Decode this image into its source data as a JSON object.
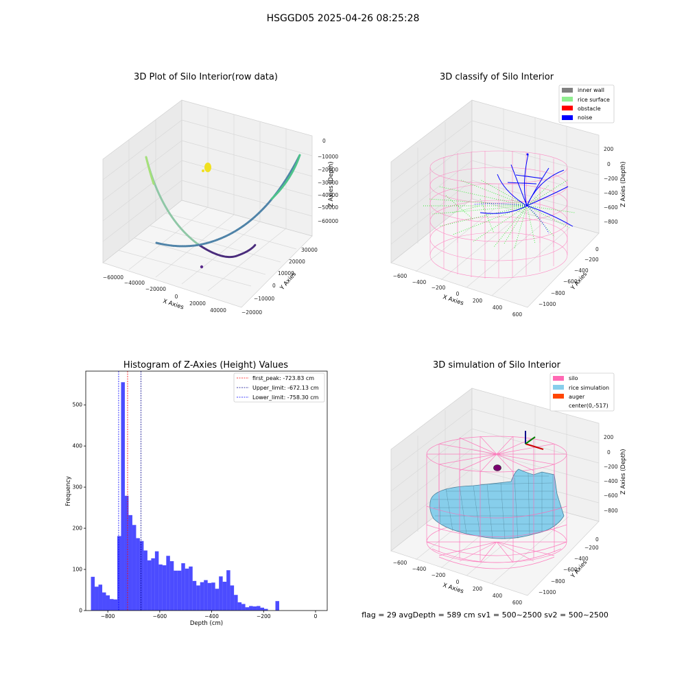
{
  "figure": {
    "suptitle": "HSGGD05 2025-04-26 08:25:28",
    "footer": "flag = 29  avgDepth = 589 cm  sv1 = 500~2500  sv2 = 500~2500"
  },
  "panels": {
    "raw": {
      "title": "3D Plot of Silo Interior(row data)",
      "x_label": "X Axies",
      "y_label": "Y Axies",
      "z_label": "Z Axies (Depth)",
      "x_ticks": [
        "−60000",
        "−40000",
        "−20000",
        "0",
        "20000",
        "40000"
      ],
      "y_ticks": [
        "−20000",
        "−10000",
        "0",
        "10000",
        "20000",
        "30000"
      ],
      "z_ticks": [
        "0",
        "−10000",
        "−20000",
        "−30000",
        "−40000",
        "−50000",
        "−60000"
      ]
    },
    "classify": {
      "title": "3D classify of Silo Interior",
      "x_label": "X Axies",
      "y_label": "Y Axies",
      "z_label": "Z Axies (Depth)",
      "x_ticks": [
        "−600",
        "−400",
        "−200",
        "0",
        "200",
        "400",
        "600"
      ],
      "y_ticks": [
        "−1000",
        "−800",
        "−600",
        "−400",
        "−200",
        "0"
      ],
      "z_ticks": [
        "200",
        "0",
        "−200",
        "−400",
        "−600",
        "−800"
      ],
      "legend": [
        {
          "label": "inner wall",
          "color": "#808080"
        },
        {
          "label": "rice surface",
          "color": "#90ee90"
        },
        {
          "label": "obstacle",
          "color": "#ff0000"
        },
        {
          "label": "noise",
          "color": "#0000ff"
        }
      ]
    },
    "simulation": {
      "title": "3D simulation of Silo Interior",
      "x_label": "X Axies",
      "y_label": "Y Axies",
      "z_label": "Z Axies (Depth)",
      "x_ticks": [
        "−600",
        "−400",
        "−200",
        "0",
        "200",
        "400",
        "600"
      ],
      "y_ticks": [
        "−1000",
        "−800",
        "−600",
        "−400",
        "−200",
        "0"
      ],
      "z_ticks": [
        "200",
        "0",
        "−200",
        "−400",
        "−600",
        "−800"
      ],
      "legend": [
        {
          "label": "silo",
          "color": "#ff69b4"
        },
        {
          "label": "rice simulation",
          "color": "#87ceeb"
        },
        {
          "label": "auger",
          "color": "#ff4500"
        },
        {
          "label": "center(0,-517)",
          "color": ""
        }
      ]
    }
  },
  "chart_data": {
    "type": "bar",
    "title": "Histogram of Z-Axies (Height) Values",
    "xlabel": "Depth (cm)",
    "ylabel": "Frequency",
    "xlim": [
      -885,
      45
    ],
    "ylim": [
      0,
      582
    ],
    "x_ticks": [
      -800,
      -600,
      -400,
      -200,
      0
    ],
    "x_tick_labels": [
      "−800",
      "−600",
      "−400",
      "−200",
      "0"
    ],
    "y_ticks": [
      0,
      100,
      200,
      300,
      400,
      500
    ],
    "y_tick_labels": [
      "0",
      "100",
      "200",
      "300",
      "400",
      "500"
    ],
    "bar_color": "#0000ff",
    "bar_opacity": 0.7,
    "bin_start": -865,
    "bin_width": 14.5,
    "values": [
      82,
      58,
      63,
      44,
      37,
      28,
      27,
      181,
      555,
      279,
      232,
      208,
      176,
      169,
      146,
      122,
      127,
      144,
      112,
      110,
      133,
      120,
      97,
      97,
      115,
      102,
      107,
      72,
      61,
      69,
      74,
      67,
      68,
      53,
      83,
      70,
      98,
      61,
      38,
      20,
      16,
      8,
      11,
      10,
      11,
      7,
      4,
      0,
      0,
      23
    ],
    "reference_lines": [
      {
        "name": "first_peak: -723.83 cm",
        "x": -723.83,
        "color": "#ff0000"
      },
      {
        "name": "Upper_limit: -672.13 cm",
        "x": -672.13,
        "color": "#00008b"
      },
      {
        "name": "Lower_limit: -758.30 cm",
        "x": -758.3,
        "color": "#0000ff"
      }
    ],
    "legend_position": "top-right"
  }
}
